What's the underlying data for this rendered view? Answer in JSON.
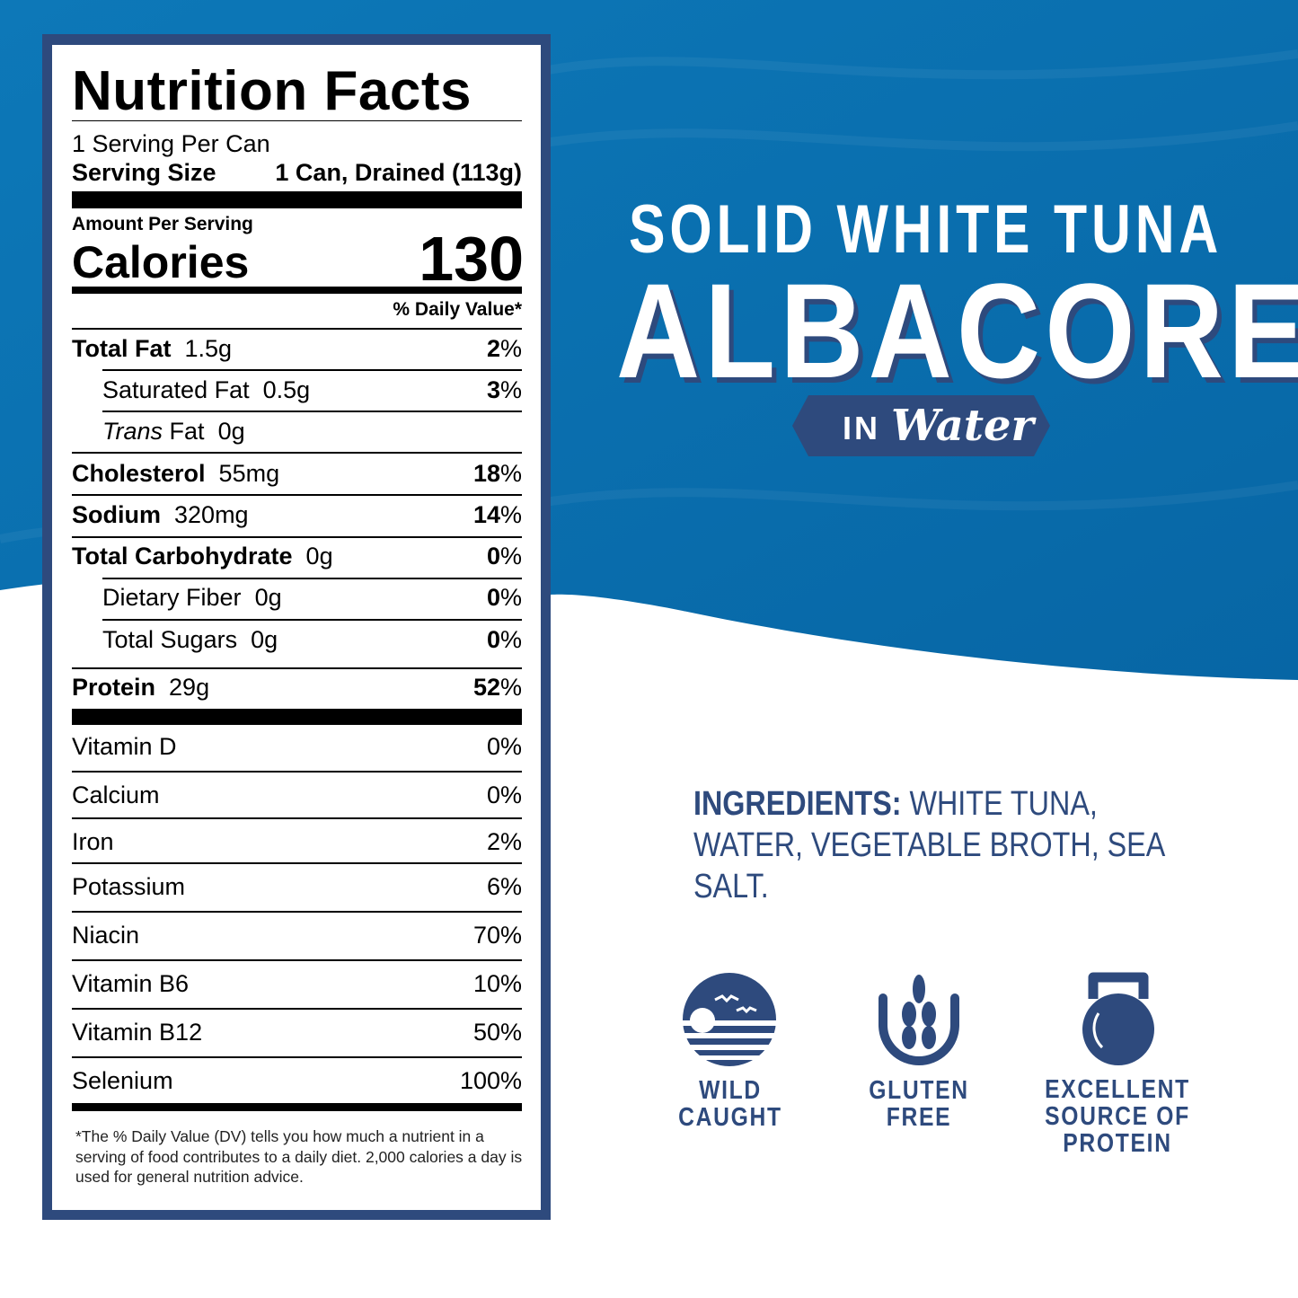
{
  "colors": {
    "ocean": "#0a6cab",
    "navy": "#2e4a7d",
    "white": "#ffffff"
  },
  "nutrition": {
    "title": "Nutrition Facts",
    "servings": "1 Serving Per Can",
    "serving_size_label": "Serving Size",
    "serving_size_value": "1 Can, Drained (113g)",
    "amount_per_serving": "Amount Per Serving",
    "calories_label": "Calories",
    "calories_value": "130",
    "dv_header": "% Daily Value*",
    "nutrients": [
      {
        "name": "Total Fat",
        "amount": "1.5g",
        "dv": "2",
        "bold": true,
        "indent": false
      },
      {
        "name": "Saturated Fat",
        "amount": "0.5g",
        "dv": "3",
        "bold": false,
        "indent": true
      },
      {
        "name": "Trans",
        "name_suffix": "Fat",
        "amount": "0g",
        "dv": "",
        "bold": false,
        "indent": true
      },
      {
        "name": "Cholesterol",
        "amount": "55mg",
        "dv": "18",
        "bold": true,
        "indent": false
      },
      {
        "name": "Sodium",
        "amount": "320mg",
        "dv": "14",
        "bold": true,
        "indent": false
      },
      {
        "name": "Total Carbohydrate",
        "amount": "0g",
        "dv": "0",
        "bold": true,
        "indent": false
      },
      {
        "name": "Dietary Fiber",
        "amount": "0g",
        "dv": "0",
        "bold": false,
        "indent": true
      },
      {
        "name": "Total Sugars",
        "amount": "0g",
        "dv": "0",
        "bold": false,
        "indent": true
      },
      {
        "name": "Protein",
        "amount": "29g",
        "dv": "52",
        "bold": true,
        "indent": false
      }
    ],
    "vitamins": [
      {
        "name": "Vitamin D",
        "dv": "0%"
      },
      {
        "name": "Calcium",
        "dv": "0%"
      },
      {
        "name": "Iron",
        "dv": "2%"
      },
      {
        "name": "Potassium",
        "dv": "6%"
      },
      {
        "name": "Niacin",
        "dv": "70%"
      },
      {
        "name": "Vitamin B6",
        "dv": "10%"
      },
      {
        "name": "Vitamin B12",
        "dv": "50%"
      },
      {
        "name": "Selenium",
        "dv": "100%"
      }
    ],
    "footnote": "*The % Daily Value (DV) tells you how much a nutrient in a serving of food contributes to a daily diet. 2,000 calories a day is used for general nutrition advice."
  },
  "product": {
    "line1": "SOLID WHITE TUNA",
    "line2": "ALBACORE",
    "banner_in": "IN",
    "banner_water": "Water"
  },
  "ingredients": {
    "label": "INGREDIENTS:",
    "text": "WHITE TUNA, WATER, VEGETABLE BROTH, SEA SALT."
  },
  "badges": [
    {
      "icon": "wild-caught-icon",
      "line1": "WILD",
      "line2": "CAUGHT"
    },
    {
      "icon": "wheat-icon",
      "line1": "GLUTEN",
      "line2": "FREE"
    },
    {
      "icon": "kettlebell-icon",
      "line1": "EXCELLENT",
      "line2": "SOURCE OF",
      "line3": "PROTEIN"
    }
  ]
}
